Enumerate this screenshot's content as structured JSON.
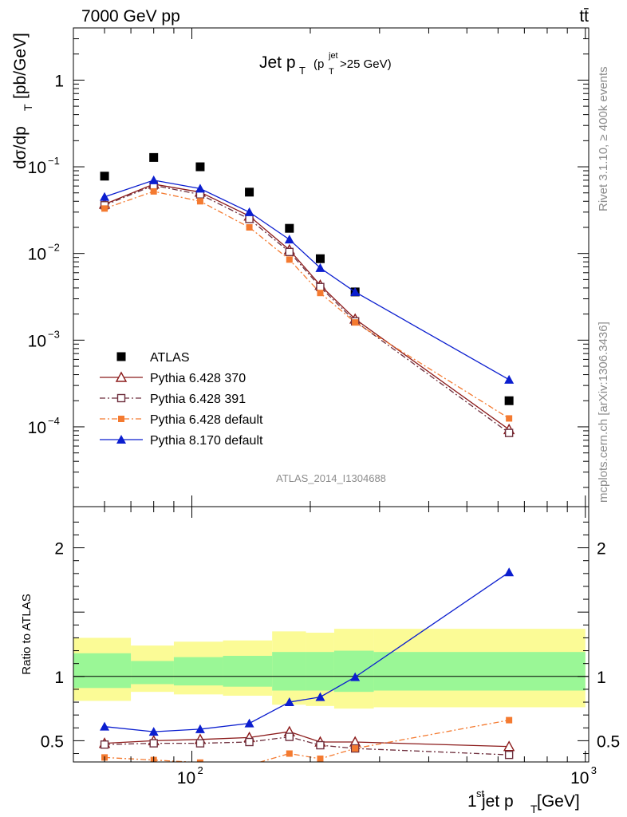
{
  "header": {
    "energy_label": "7000 GeV pp",
    "process_label": "tt̄",
    "plot_title": "Jet p",
    "plot_title_sub": "T",
    "cut_open": "(p",
    "cut_sup": "jet",
    "cut_sub": "T",
    "cut_close": ">25 GeV)",
    "analysis_id": "ATLAS_2014_I1304688",
    "rivet_label": "Rivet 3.1.10, ≥ 400k events",
    "mcplots_label": "mcplots.cern.ch [arXiv:1306.3436]"
  },
  "chart_data": [
    {
      "type": "scatter",
      "panel": "main",
      "ylabel": "dσ/dp",
      "ylabel_sub": "T",
      "ylabel_unit": "[pb/GeV]",
      "x_scale": "log",
      "y_scale": "log",
      "xlim": [
        50,
        1020
      ],
      "ylim": [
        1.2e-05,
        4
      ],
      "yticks": [
        {
          "value": 1,
          "label": "1"
        },
        {
          "value": 0.1,
          "label": "10",
          "exp": "−1"
        },
        {
          "value": 0.01,
          "label": "10",
          "exp": "−2"
        },
        {
          "value": 0.001,
          "label": "10",
          "exp": "−3"
        },
        {
          "value": 0.0001,
          "label": "10",
          "exp": "−4"
        }
      ],
      "legend_position": "bottom-left",
      "series": [
        {
          "name": "ATLAS",
          "marker": "square-filled",
          "color": "#000000",
          "line": "none",
          "x": [
            60,
            80,
            105,
            140,
            177,
            212,
            260,
            640
          ],
          "y": [
            0.078,
            0.128,
            0.1,
            0.051,
            0.0195,
            0.0087,
            0.0036,
            0.0002
          ]
        },
        {
          "name": "Pythia 6.428 370",
          "marker": "triangle-open",
          "color": "#8b1a1a",
          "line": "solid",
          "x": [
            60,
            80,
            105,
            140,
            177,
            212,
            260,
            640
          ],
          "y": [
            0.037,
            0.063,
            0.051,
            0.027,
            0.011,
            0.0043,
            0.00175,
            9.3e-05
          ]
        },
        {
          "name": "Pythia 6.428 391",
          "marker": "square-open",
          "color": "#6e2f3d",
          "line": "dashdot",
          "x": [
            60,
            80,
            105,
            140,
            177,
            212,
            260,
            640
          ],
          "y": [
            0.036,
            0.061,
            0.048,
            0.025,
            0.0104,
            0.0041,
            0.00165,
            8.5e-05
          ]
        },
        {
          "name": "Pythia 6.428 default",
          "marker": "square-filled-small",
          "color": "#f47a30",
          "line": "dashdot",
          "x": [
            60,
            80,
            105,
            140,
            177,
            212,
            260,
            640
          ],
          "y": [
            0.033,
            0.052,
            0.04,
            0.02,
            0.0085,
            0.0035,
            0.0016,
            0.000125
          ]
        },
        {
          "name": "Pythia 8.170 default",
          "marker": "triangle-filled",
          "color": "#0b1ecf",
          "line": "solid",
          "x": [
            60,
            80,
            105,
            140,
            177,
            212,
            260,
            640
          ],
          "y": [
            0.045,
            0.07,
            0.056,
            0.03,
            0.0145,
            0.0068,
            0.0036,
            0.00035
          ]
        }
      ]
    },
    {
      "type": "line",
      "panel": "ratio",
      "ylabel": "Ratio to ATLAS",
      "xlabel": "1",
      "xlabel_sup": "st",
      "xlabel_rest": " jet p",
      "xlabel_sub": "T",
      "xlabel_unit": " [GeV]",
      "x_scale": "log",
      "y_scale": "linear",
      "xlim": [
        50,
        1020
      ],
      "ylim": [
        0.335,
        2.32
      ],
      "yticks": [
        {
          "value": 0.5,
          "label": "0.5"
        },
        {
          "value": 1,
          "label": "1"
        },
        {
          "value": 2,
          "label": "2"
        }
      ],
      "xticks": [
        {
          "value": 100,
          "label": "10",
          "exp": "2"
        },
        {
          "value": 1000,
          "label": "10",
          "exp": "3"
        }
      ],
      "reference_line": 1,
      "bands": {
        "bin_edges": [
          50,
          70,
          90,
          120,
          160,
          195,
          230,
          290,
          1000
        ],
        "yellow_low": [
          0.81,
          0.88,
          0.86,
          0.85,
          0.78,
          0.77,
          0.75,
          0.76
        ],
        "yellow_high": [
          1.3,
          1.24,
          1.27,
          1.28,
          1.35,
          1.34,
          1.37,
          1.37
        ],
        "green_low": [
          0.91,
          0.94,
          0.93,
          0.92,
          0.89,
          0.89,
          0.88,
          0.89
        ],
        "green_high": [
          1.18,
          1.12,
          1.15,
          1.16,
          1.19,
          1.19,
          1.2,
          1.19
        ]
      },
      "series": [
        {
          "name": "Pythia 6.428 370",
          "marker": "triangle-open",
          "color": "#8b1a1a",
          "line": "solid",
          "x": [
            60,
            80,
            105,
            140,
            177,
            212,
            260,
            640
          ],
          "y": [
            0.48,
            0.5,
            0.51,
            0.525,
            0.57,
            0.49,
            0.49,
            0.455
          ]
        },
        {
          "name": "Pythia 6.428 391",
          "marker": "square-open",
          "color": "#6e2f3d",
          "line": "dashdot",
          "x": [
            60,
            80,
            105,
            140,
            177,
            212,
            260,
            640
          ],
          "y": [
            0.47,
            0.48,
            0.48,
            0.49,
            0.53,
            0.465,
            0.44,
            0.39
          ]
        },
        {
          "name": "Pythia 6.428 default",
          "marker": "square-filled-small",
          "color": "#f47a30",
          "line": "dashdot",
          "x": [
            60,
            80,
            105,
            140,
            177,
            212,
            260,
            640
          ],
          "y": [
            0.37,
            0.35,
            0.33,
            0.31,
            0.4,
            0.36,
            0.44,
            0.66
          ]
        },
        {
          "name": "Pythia 8.170 default",
          "marker": "triangle-filled",
          "color": "#0b1ecf",
          "line": "solid",
          "x": [
            60,
            80,
            105,
            140,
            177,
            212,
            260,
            640
          ],
          "y": [
            0.61,
            0.57,
            0.59,
            0.635,
            0.8,
            0.84,
            0.995,
            1.81
          ]
        }
      ]
    }
  ]
}
